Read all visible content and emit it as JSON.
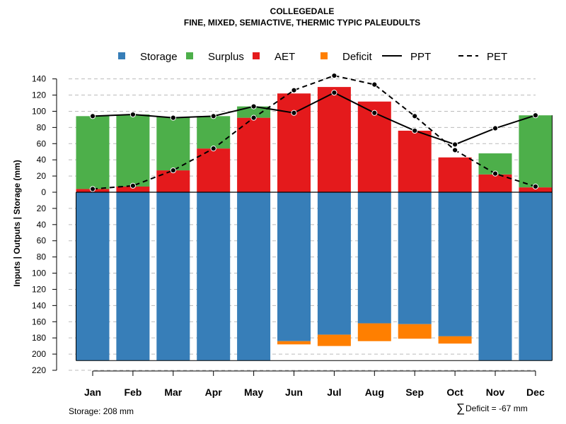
{
  "chart_data": {
    "type": "bar",
    "title": "COLLEGEDALE",
    "subtitle": "FINE, MIXED, SEMIACTIVE, THERMIC TYPIC PALEUDULTS",
    "ylabel": "Inputs | Outputs | Storage     (mm)",
    "categories": [
      "Jan",
      "Feb",
      "Mar",
      "Apr",
      "May",
      "Jun",
      "Jul",
      "Aug",
      "Sep",
      "Oct",
      "Nov",
      "Dec"
    ],
    "ylim": [
      -220,
      150
    ],
    "yticks": [
      140,
      120,
      100,
      80,
      60,
      40,
      20,
      0,
      -20,
      -40,
      -60,
      -80,
      -100,
      -120,
      -140,
      -160,
      -180,
      -200,
      -220
    ],
    "ytick_labels": [
      "140",
      "120",
      "100",
      "80",
      "60",
      "40",
      "20",
      "0",
      "20",
      "40",
      "60",
      "80",
      "100",
      "120",
      "140",
      "160",
      "180",
      "200",
      "220"
    ],
    "grid": true,
    "legend_position": "top",
    "colors": {
      "Storage": "#377EB8",
      "Surplus": "#4DAF4A",
      "AET": "#E41A1C",
      "Deficit": "#FF7F00",
      "line": "#000000",
      "grid": "#bbbbbb"
    },
    "legend": [
      {
        "name": "Storage",
        "kind": "square",
        "color": "#377EB8"
      },
      {
        "name": "Surplus",
        "kind": "square",
        "color": "#4DAF4A"
      },
      {
        "name": "AET",
        "kind": "square",
        "color": "#E41A1C"
      },
      {
        "name": "Deficit",
        "kind": "square",
        "color": "#FF7F00"
      },
      {
        "name": "PPT",
        "kind": "solid-line",
        "color": "#000000"
      },
      {
        "name": "PET",
        "kind": "dashed-line",
        "color": "#000000"
      }
    ],
    "series": [
      {
        "name": "AET",
        "values": [
          4,
          7,
          27,
          54,
          92,
          122,
          130,
          112,
          76,
          43,
          22,
          6
        ]
      },
      {
        "name": "Surplus",
        "values": [
          90,
          89,
          66,
          40,
          14,
          0,
          0,
          0,
          0,
          0,
          26,
          89
        ]
      },
      {
        "name": "Storage",
        "values": [
          208,
          208,
          208,
          208,
          208,
          184,
          176,
          162,
          163,
          178,
          208,
          208
        ]
      },
      {
        "name": "Deficit",
        "values": [
          0,
          0,
          0,
          0,
          0,
          4,
          14,
          22,
          18,
          9,
          0,
          0
        ]
      },
      {
        "name": "PPT",
        "values": [
          94,
          96,
          92,
          94,
          106,
          98,
          123,
          98,
          76,
          59,
          79,
          95
        ]
      },
      {
        "name": "PET",
        "values": [
          4,
          8,
          27,
          54,
          92,
          126,
          144,
          133,
          94,
          52,
          23,
          7
        ]
      }
    ]
  },
  "footer": {
    "storage_text": "Storage: 208 mm",
    "deficit_symbol": "∑",
    "deficit_text": "Deficit = -67 mm"
  }
}
